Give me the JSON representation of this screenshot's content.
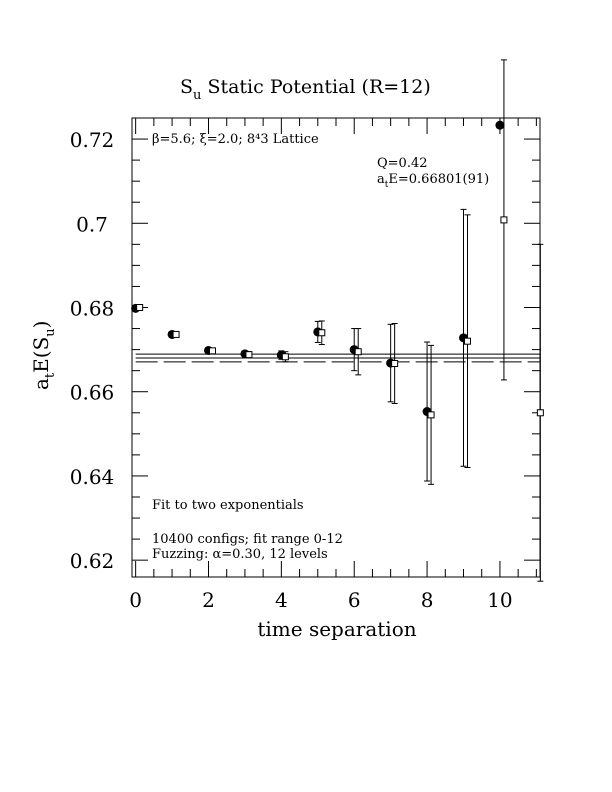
{
  "chart_data": {
    "type": "scatter",
    "title_main": "S",
    "title_sub": "u",
    "title_rest": " Static Potential (R=12)",
    "xlabel": "time separation",
    "ylabel_main": "a",
    "ylabel_sub1": "t",
    "ylabel_mid": "E(S",
    "ylabel_sub2": "u",
    "ylabel_end": ")",
    "xlim": [
      -0.1,
      11.1
    ],
    "ylim": [
      0.616,
      0.725
    ],
    "x_ticks": [
      0,
      2,
      4,
      6,
      8,
      10
    ],
    "x_tick_labels": [
      "0",
      "2",
      "4",
      "6",
      "8",
      "10"
    ],
    "y_ticks": [
      0.62,
      0.64,
      0.66,
      0.68,
      0.7,
      0.72
    ],
    "y_tick_labels": [
      "0.62",
      "0.64",
      "0.66",
      "0.68",
      "0.7",
      "0.72"
    ],
    "annotations": {
      "lattice": "β=5.6; ξ=2.0; 8⁴3 Lattice",
      "q": "Q=0.42",
      "energy_main": "a",
      "energy_sub": "t",
      "energy_rest": "E=0.66801(91)",
      "fit_type": "Fit to two exponentials",
      "configs": "10400 configs; fit range 0-12",
      "fuzzing": "Fuzzing: α=0.30, 12 levels"
    },
    "series": [
      {
        "marker": "filled-circle",
        "points": [
          {
            "x": 0,
            "y": 0.6798,
            "err": 0.0004
          },
          {
            "x": 1,
            "y": 0.6736,
            "err": 0.0005
          },
          {
            "x": 2,
            "y": 0.6698,
            "err": 0.0005
          },
          {
            "x": 3,
            "y": 0.669,
            "err": 0.0006
          },
          {
            "x": 4,
            "y": 0.6687,
            "err": 0.001
          },
          {
            "x": 5,
            "y": 0.6742,
            "err": 0.0025
          },
          {
            "x": 6,
            "y": 0.67,
            "err": 0.005
          },
          {
            "x": 7,
            "y": 0.6668,
            "err": 0.0092
          },
          {
            "x": 8,
            "y": 0.6553,
            "err": 0.0165
          },
          {
            "x": 9,
            "y": 0.6728,
            "err": 0.0305
          },
          {
            "x": 10,
            "y": 0.7233,
            "err": 0.0
          }
        ]
      },
      {
        "marker": "open-square",
        "points": [
          {
            "x": 0,
            "y": 0.68,
            "err": 0.0004
          },
          {
            "x": 1,
            "y": 0.6736,
            "err": 0.0006
          },
          {
            "x": 2,
            "y": 0.6697,
            "err": 0.0006
          },
          {
            "x": 3,
            "y": 0.6688,
            "err": 0.0007
          },
          {
            "x": 4,
            "y": 0.6683,
            "err": 0.0012
          },
          {
            "x": 5,
            "y": 0.674,
            "err": 0.0028
          },
          {
            "x": 6,
            "y": 0.6695,
            "err": 0.0055
          },
          {
            "x": 7,
            "y": 0.6667,
            "err": 0.0095
          },
          {
            "x": 8,
            "y": 0.6545,
            "err": 0.0165
          },
          {
            "x": 9,
            "y": 0.672,
            "err": 0.03
          },
          {
            "x": 10,
            "y": 0.7008,
            "err": 0.038
          },
          {
            "x": 11,
            "y": 0.655,
            "err": 0.04
          }
        ]
      }
    ],
    "fit": {
      "center": 0.66801,
      "band_upper": 0.66892,
      "band_lower": 0.6671,
      "x_from": 0,
      "x_to": 11.1
    }
  }
}
